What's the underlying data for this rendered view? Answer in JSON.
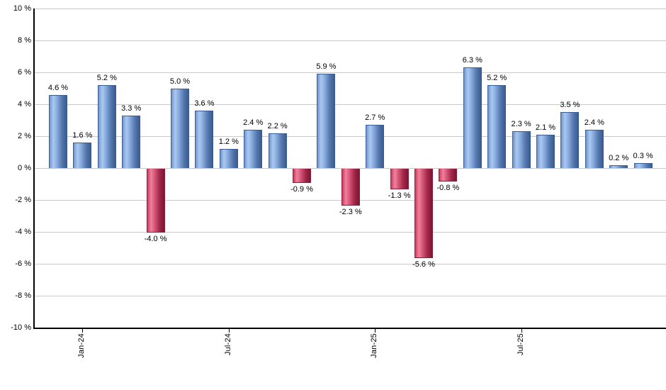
{
  "chart_data": {
    "type": "bar",
    "title": "",
    "xlabel": "",
    "ylabel": "",
    "ylim": [
      -10,
      10
    ],
    "y_tick_step": 2,
    "grid": true,
    "legend": "none",
    "y_tick_labels": [
      "10 %",
      "8 %",
      "6 %",
      "4 %",
      "2 %",
      "0 %",
      "-2 %",
      "-4 %",
      "-6 %",
      "-8 %",
      "-10 %"
    ],
    "x_tick_labels": [
      {
        "label": "Jan-24",
        "bar_index": 1
      },
      {
        "label": "Jul-24",
        "bar_index": 7
      },
      {
        "label": "Jan-25",
        "bar_index": 13
      },
      {
        "label": "Jul-25",
        "bar_index": 19
      }
    ],
    "values": [
      4.6,
      1.6,
      5.2,
      3.3,
      -4.0,
      5.0,
      3.6,
      1.2,
      2.4,
      2.2,
      -0.9,
      5.9,
      -2.3,
      2.7,
      -1.3,
      -5.6,
      -0.8,
      6.3,
      5.2,
      2.3,
      2.1,
      3.5,
      2.4,
      0.2,
      0.3
    ],
    "data_labels": [
      "4.6 %",
      "1.6 %",
      "5.2 %",
      "3.3 %",
      "-4.0 %",
      "5.0 %",
      "3.6 %",
      "1.2 %",
      "2.4 %",
      "2.2 %",
      "-0.9 %",
      "5.9 %",
      "-2.3 %",
      "2.7 %",
      "-1.3 %",
      "-5.6 %",
      "-0.8 %",
      "6.3 %",
      "5.2 %",
      "2.3 %",
      "2.1 %",
      "3.5 %",
      "2.4 %",
      "0.2 %",
      "0.3 %"
    ],
    "colors": {
      "positive": "#6e95cc",
      "negative": "#c73a62",
      "gridline": "#c9c9c9",
      "axis": "#000000",
      "label_text": "#000000",
      "background": "#ffffff"
    }
  }
}
